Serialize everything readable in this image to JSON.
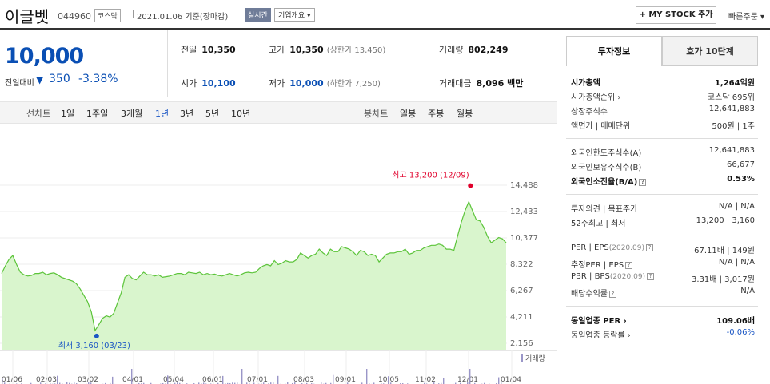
{
  "header": {
    "stock_name": "이글벳",
    "stock_code": "044960",
    "market": "코스닥",
    "date": "2021.01.06 기준(장마감)",
    "realtime": "실시간",
    "company_info": "기업개요 ▾",
    "mystock": "+ MY STOCK 추가",
    "quick_order": "빠른주문 ▾"
  },
  "price": {
    "current": "10,000",
    "change_label": "전일대비",
    "change_arrow": "▼",
    "change": "350",
    "change_pct": "-3.38%"
  },
  "quote": {
    "prev_close_label": "전일",
    "prev_close": "10,350",
    "high_label": "고가",
    "high": "10,350",
    "upper_limit": "(상한가 13,450)",
    "volume_label": "거래량",
    "volume": "802,249",
    "open_label": "시가",
    "open": "10,100",
    "low_label": "저가",
    "low": "10,000",
    "lower_limit": "(하한가 7,250)",
    "amount_label": "거래대금",
    "amount": "8,096 백만"
  },
  "periods": {
    "line_label": "선차트",
    "line": [
      "1일",
      "1주일",
      "3개월",
      "1년",
      "3년",
      "5년",
      "10년"
    ],
    "selected": "1년",
    "candle_label": "봉차트",
    "candle": [
      "일봉",
      "주봉",
      "월봉"
    ]
  },
  "chart_data": {
    "type": "area",
    "y_ticks": [
      "14,488",
      "12,433",
      "10,377",
      "8,322",
      "6,267",
      "4,211",
      "2,156"
    ],
    "x_ticks": [
      "01/06",
      "02/03",
      "03/02",
      "04/01",
      "05/04",
      "06/01",
      "07/01",
      "08/03",
      "09/01",
      "10/05",
      "11/02",
      "12/01",
      "01/04"
    ],
    "ylim": [
      2156,
      14488
    ],
    "high_annotation": "최고 13,200 (12/09)",
    "low_annotation": "최저 3,160 (03/23)",
    "volume_legend": "거래량",
    "colors": {
      "line": "#5cc43a",
      "fill": "#d9f5cd",
      "high": "#e0002b",
      "low": "#1a56c4",
      "volume": "#9a96c8"
    },
    "series": [
      {
        "values": [
          7600,
          8200,
          8700,
          9000,
          8300,
          7700,
          7500,
          7400,
          7450,
          7600,
          7600,
          7700,
          7500,
          7600,
          7650,
          7500,
          7300,
          7200,
          7100,
          7000,
          6800,
          6400,
          5900,
          5400,
          4600,
          3160,
          3600,
          4100,
          4300,
          4200,
          4500,
          5300,
          6100,
          7300,
          7500,
          7200,
          7100,
          7400,
          7700,
          7500,
          7500,
          7400,
          7500,
          7300,
          7350,
          7400,
          7500,
          7600,
          7600,
          7500,
          7700,
          7650,
          7600,
          7700,
          7500,
          7600,
          7500,
          7550,
          7450,
          7400,
          7500,
          7600,
          7500,
          7400,
          7500,
          7650,
          7700,
          7650,
          7700,
          8000,
          8200,
          8300,
          8200,
          8600,
          8300,
          8400,
          8600,
          8500,
          8500,
          8700,
          9200,
          9000,
          8800,
          9000,
          9100,
          9500,
          9200,
          9000,
          9500,
          9300,
          9300,
          9700,
          9600,
          9500,
          9300,
          9000,
          9400,
          9300,
          9000,
          9100,
          9000,
          8500,
          8800,
          9100,
          9200,
          9200,
          9300,
          9300,
          9500,
          9100,
          9200,
          9400,
          9400,
          9600,
          9700,
          9800,
          9800,
          9900,
          9800,
          9500,
          9500,
          9400,
          10500,
          11600,
          12500,
          13200,
          12500,
          11800,
          11700,
          11200,
          10500,
          10000,
          10200,
          10400,
          10300,
          10000
        ]
      }
    ]
  }
}
